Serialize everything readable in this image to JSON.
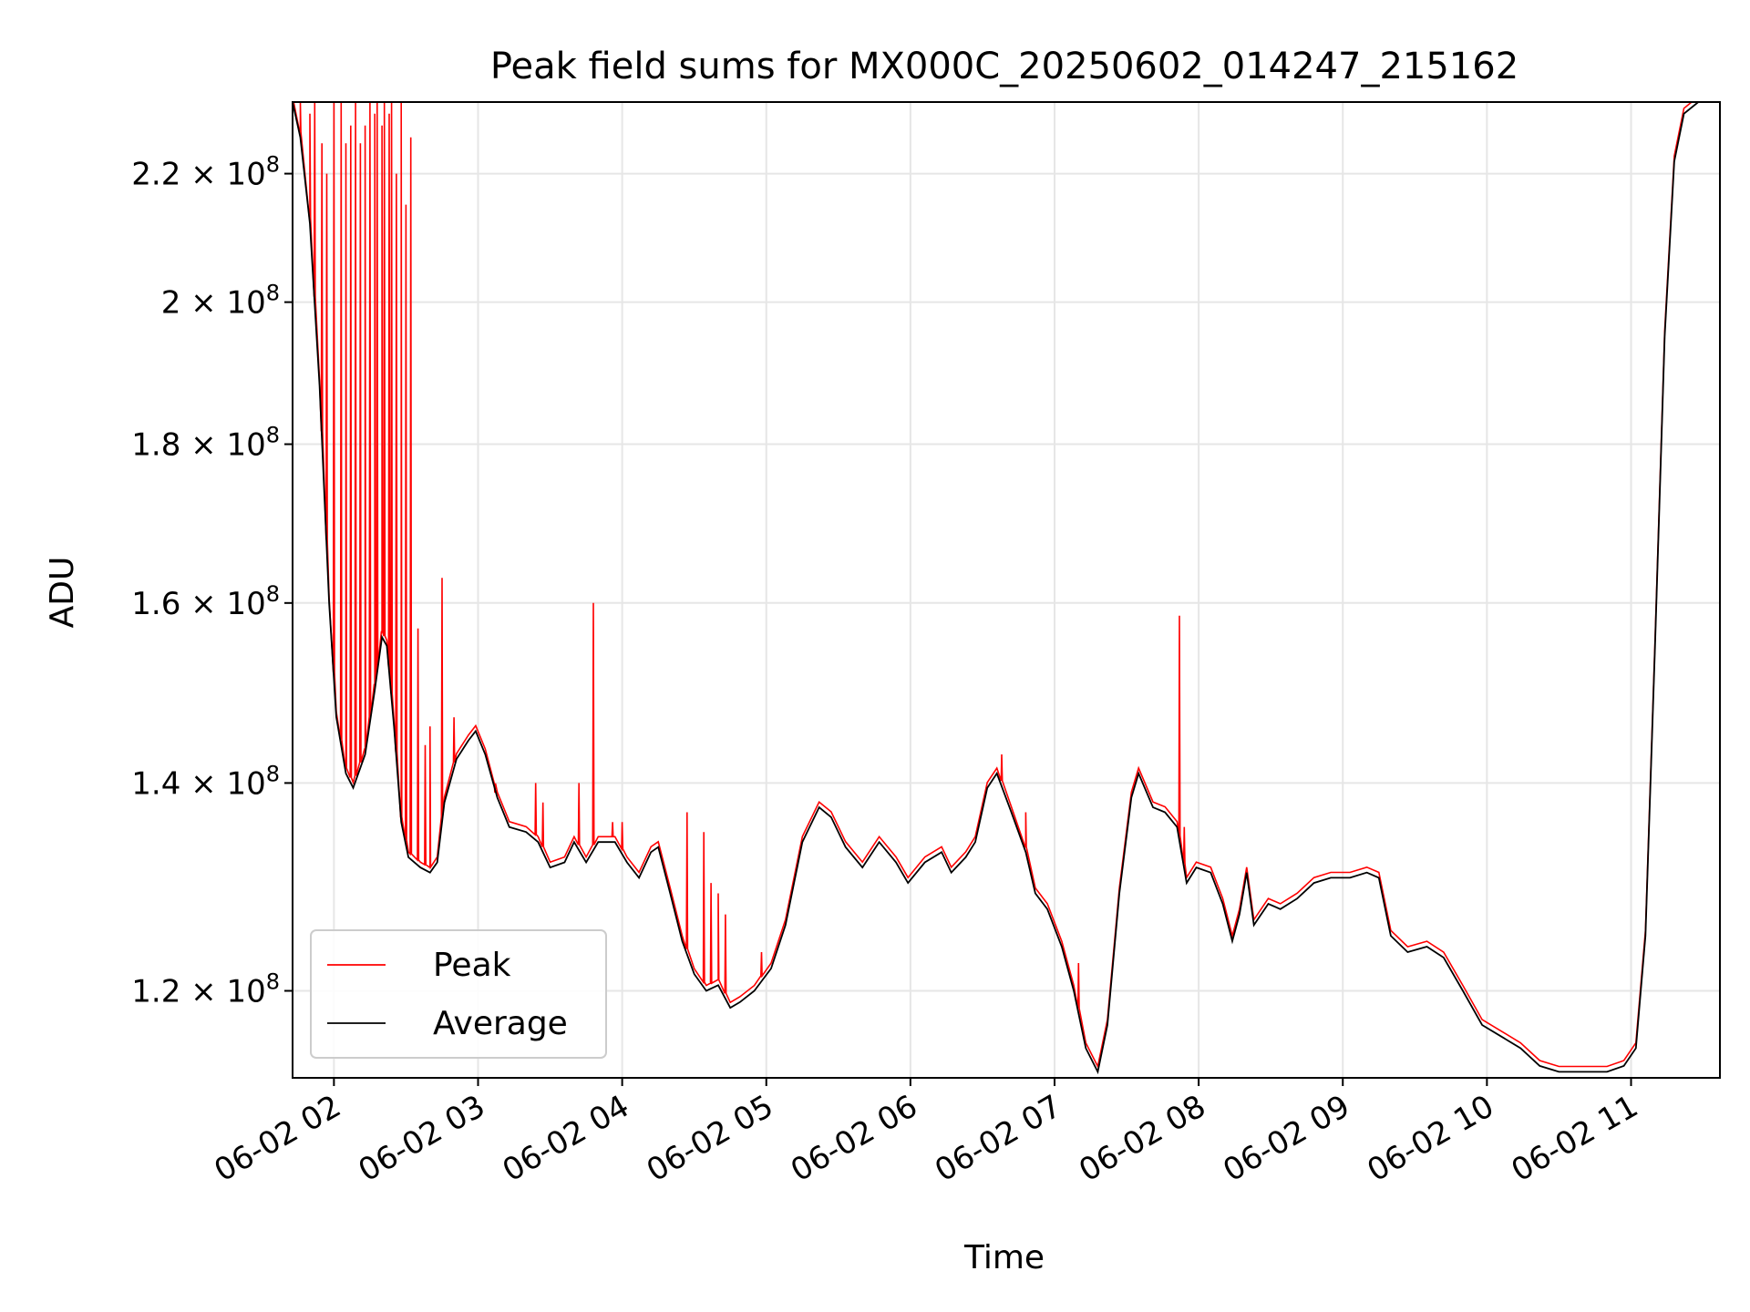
{
  "chart_data": {
    "type": "line",
    "title": "Peak field sums for MX000C_20250602_014247_215162",
    "xlabel": "Time",
    "ylabel": "ADU",
    "y_scale": "log",
    "x_start": "2025-06-02 01:42:47",
    "xlim": [
      "2025-06-02 01:42:47",
      "2025-06-02 11:37:00"
    ],
    "ylim": [
      112500000.0,
      232000000.0
    ],
    "x_ticks": [
      {
        "time": "2025-06-02 02:00",
        "label": "06-02 02"
      },
      {
        "time": "2025-06-02 03:00",
        "label": "06-02 03"
      },
      {
        "time": "2025-06-02 04:00",
        "label": "06-02 04"
      },
      {
        "time": "2025-06-02 05:00",
        "label": "06-02 05"
      },
      {
        "time": "2025-06-02 06:00",
        "label": "06-02 06"
      },
      {
        "time": "2025-06-02 07:00",
        "label": "06-02 07"
      },
      {
        "time": "2025-06-02 08:00",
        "label": "06-02 08"
      },
      {
        "time": "2025-06-02 09:00",
        "label": "06-02 09"
      },
      {
        "time": "2025-06-02 10:00",
        "label": "06-02 10"
      },
      {
        "time": "2025-06-02 11:00",
        "label": "06-02 11"
      }
    ],
    "y_ticks": [
      {
        "value": 120000000.0,
        "mantissa": "1.2",
        "exp": "8"
      },
      {
        "value": 140000000.0,
        "mantissa": "1.4",
        "exp": "8"
      },
      {
        "value": 160000000.0,
        "mantissa": "1.6",
        "exp": "8"
      },
      {
        "value": 180000000.0,
        "mantissa": "1.8",
        "exp": "8"
      },
      {
        "value": 200000000.0,
        "mantissa": "2",
        "exp": "8"
      },
      {
        "value": 220000000.0,
        "mantissa": "2.2",
        "exp": "8"
      }
    ],
    "grid": true,
    "legend_position": "lower-left",
    "series": [
      {
        "name": "Average",
        "color": "#000000",
        "points": [
          [
            "2025-06-02 01:42:47",
            232000000.0
          ],
          [
            "2025-06-02 01:46:00",
            226000000.0
          ],
          [
            "2025-06-02 01:50:00",
            212000000.0
          ],
          [
            "2025-06-02 01:54:00",
            188000000.0
          ],
          [
            "2025-06-02 01:58:00",
            160000000.0
          ],
          [
            "2025-06-02 02:01:00",
            147000000.0
          ],
          [
            "2025-06-02 02:05:00",
            141000000.0
          ],
          [
            "2025-06-02 02:08:00",
            139500000.0
          ],
          [
            "2025-06-02 02:13:00",
            143000000.0
          ],
          [
            "2025-06-02 02:17:00",
            150000000.0
          ],
          [
            "2025-06-02 02:20:00",
            156000000.0
          ],
          [
            "2025-06-02 02:22:00",
            155000000.0
          ],
          [
            "2025-06-02 02:25:00",
            146000000.0
          ],
          [
            "2025-06-02 02:28:00",
            136000000.0
          ],
          [
            "2025-06-02 02:31:00",
            132500000.0
          ],
          [
            "2025-06-02 02:36:00",
            131500000.0
          ],
          [
            "2025-06-02 02:40:00",
            131000000.0
          ],
          [
            "2025-06-02 02:43:00",
            132000000.0
          ],
          [
            "2025-06-02 02:46:00",
            138000000.0
          ],
          [
            "2025-06-02 02:51:00",
            142500000.0
          ],
          [
            "2025-06-02 02:56:00",
            144500000.0
          ],
          [
            "2025-06-02 02:59:00",
            145500000.0
          ],
          [
            "2025-06-02 03:03:00",
            143000000.0
          ],
          [
            "2025-06-02 03:08:00",
            138500000.0
          ],
          [
            "2025-06-02 03:13:00",
            135500000.0
          ],
          [
            "2025-06-02 03:20:00",
            135000000.0
          ],
          [
            "2025-06-02 03:25:00",
            134000000.0
          ],
          [
            "2025-06-02 03:30:00",
            131500000.0
          ],
          [
            "2025-06-02 03:36:00",
            132000000.0
          ],
          [
            "2025-06-02 03:40:00",
            134000000.0
          ],
          [
            "2025-06-02 03:45:00",
            132000000.0
          ],
          [
            "2025-06-02 03:50:00",
            134000000.0
          ],
          [
            "2025-06-02 03:57:00",
            134000000.0
          ],
          [
            "2025-06-02 04:02:00",
            132000000.0
          ],
          [
            "2025-06-02 04:07:00",
            130500000.0
          ],
          [
            "2025-06-02 04:12:00",
            133000000.0
          ],
          [
            "2025-06-02 04:15:00",
            133500000.0
          ],
          [
            "2025-06-02 04:20:00",
            129000000.0
          ],
          [
            "2025-06-02 04:25:00",
            124500000.0
          ],
          [
            "2025-06-02 04:30:00",
            121500000.0
          ],
          [
            "2025-06-02 04:35:00",
            120000000.0
          ],
          [
            "2025-06-02 04:40:00",
            120500000.0
          ],
          [
            "2025-06-02 04:45:00",
            118500000.0
          ],
          [
            "2025-06-02 04:49:00",
            119000000.0
          ],
          [
            "2025-06-02 04:55:00",
            120000000.0
          ],
          [
            "2025-06-02 05:02:00",
            122000000.0
          ],
          [
            "2025-06-02 05:08:00",
            126000000.0
          ],
          [
            "2025-06-02 05:15:00",
            134000000.0
          ],
          [
            "2025-06-02 05:22:00",
            137500000.0
          ],
          [
            "2025-06-02 05:27:00",
            136500000.0
          ],
          [
            "2025-06-02 05:33:00",
            133500000.0
          ],
          [
            "2025-06-02 05:40:00",
            131500000.0
          ],
          [
            "2025-06-02 05:47:00",
            134000000.0
          ],
          [
            "2025-06-02 05:54:00",
            132000000.0
          ],
          [
            "2025-06-02 05:59:00",
            130000000.0
          ],
          [
            "2025-06-02 06:06:00",
            132000000.0
          ],
          [
            "2025-06-02 06:13:00",
            133000000.0
          ],
          [
            "2025-06-02 06:17:00",
            131000000.0
          ],
          [
            "2025-06-02 06:23:00",
            132500000.0
          ],
          [
            "2025-06-02 06:27:00",
            134000000.0
          ],
          [
            "2025-06-02 06:32:00",
            139500000.0
          ],
          [
            "2025-06-02 06:36:00",
            141000000.0
          ],
          [
            "2025-06-02 06:42:00",
            137000000.0
          ],
          [
            "2025-06-02 06:48:00",
            133000000.0
          ],
          [
            "2025-06-02 06:52:00",
            129000000.0
          ],
          [
            "2025-06-02 06:57:00",
            127500000.0
          ],
          [
            "2025-06-02 07:03:00",
            124000000.0
          ],
          [
            "2025-06-02 07:08:00",
            120000000.0
          ],
          [
            "2025-06-02 07:13:00",
            115000000.0
          ],
          [
            "2025-06-02 07:18:00",
            113000000.0
          ],
          [
            "2025-06-02 07:22:00",
            117000000.0
          ],
          [
            "2025-06-02 07:27:00",
            129000000.0
          ],
          [
            "2025-06-02 07:32:00",
            138500000.0
          ],
          [
            "2025-06-02 07:35:00",
            141000000.0
          ],
          [
            "2025-06-02 07:41:00",
            137500000.0
          ],
          [
            "2025-06-02 07:46:00",
            137000000.0
          ],
          [
            "2025-06-02 07:51:00",
            135500000.0
          ],
          [
            "2025-06-02 07:55:00",
            130000000.0
          ],
          [
            "2025-06-02 07:59:00",
            131500000.0
          ],
          [
            "2025-06-02 08:05:00",
            131000000.0
          ],
          [
            "2025-06-02 08:10:00",
            128000000.0
          ],
          [
            "2025-06-02 08:14:00",
            124500000.0
          ],
          [
            "2025-06-02 08:17:00",
            127000000.0
          ],
          [
            "2025-06-02 08:20:00",
            131000000.0
          ],
          [
            "2025-06-02 08:23:00",
            126000000.0
          ],
          [
            "2025-06-02 08:29:00",
            128000000.0
          ],
          [
            "2025-06-02 08:34:00",
            127500000.0
          ],
          [
            "2025-06-02 08:41:00",
            128500000.0
          ],
          [
            "2025-06-02 08:48:00",
            130000000.0
          ],
          [
            "2025-06-02 08:55:00",
            130500000.0
          ],
          [
            "2025-06-02 09:03:00",
            130500000.0
          ],
          [
            "2025-06-02 09:10:00",
            131000000.0
          ],
          [
            "2025-06-02 09:15:00",
            130500000.0
          ],
          [
            "2025-06-02 09:20:00",
            125000000.0
          ],
          [
            "2025-06-02 09:27:00",
            123500000.0
          ],
          [
            "2025-06-02 09:35:00",
            124000000.0
          ],
          [
            "2025-06-02 09:42:00",
            123000000.0
          ],
          [
            "2025-06-02 09:50:00",
            120000000.0
          ],
          [
            "2025-06-02 09:58:00",
            117000000.0
          ],
          [
            "2025-06-02 10:06:00",
            116000000.0
          ],
          [
            "2025-06-02 10:14:00",
            115000000.0
          ],
          [
            "2025-06-02 10:22:00",
            113500000.0
          ],
          [
            "2025-06-02 10:30:00",
            113000000.0
          ],
          [
            "2025-06-02 10:40:00",
            113000000.0
          ],
          [
            "2025-06-02 10:50:00",
            113000000.0
          ],
          [
            "2025-06-02 10:57:00",
            113500000.0
          ],
          [
            "2025-06-02 11:02:00",
            115000000.0
          ],
          [
            "2025-06-02 11:06:00",
            125000000.0
          ],
          [
            "2025-06-02 11:10:00",
            155000000.0
          ],
          [
            "2025-06-02 11:14:00",
            195000000.0
          ],
          [
            "2025-06-02 11:18:00",
            222000000.0
          ],
          [
            "2025-06-02 11:22:00",
            230000000.0
          ],
          [
            "2025-06-02 11:28:00",
            232000000.0
          ],
          [
            "2025-06-02 11:37:00",
            232000000.0
          ]
        ]
      },
      {
        "name": "Peak",
        "color": "#ff0000",
        "spikes": [
          [
            "2025-06-02 01:46:00",
            232000000.0
          ],
          [
            "2025-06-02 01:50:00",
            230000000.0
          ],
          [
            "2025-06-02 01:52:00",
            232000000.0
          ],
          [
            "2025-06-02 01:55:00",
            225000000.0
          ],
          [
            "2025-06-02 01:57:00",
            220000000.0
          ],
          [
            "2025-06-02 02:00:00",
            232000000.0
          ],
          [
            "2025-06-02 02:03:00",
            232000000.0
          ],
          [
            "2025-06-02 02:05:00",
            225000000.0
          ],
          [
            "2025-06-02 02:07:00",
            228000000.0
          ],
          [
            "2025-06-02 02:09:00",
            232000000.0
          ],
          [
            "2025-06-02 02:11:00",
            225000000.0
          ],
          [
            "2025-06-02 02:13:00",
            228000000.0
          ],
          [
            "2025-06-02 02:15:00",
            232000000.0
          ],
          [
            "2025-06-02 02:17:00",
            230000000.0
          ],
          [
            "2025-06-02 02:18:00",
            232000000.0
          ],
          [
            "2025-06-02 02:20:00",
            228000000.0
          ],
          [
            "2025-06-02 02:21:00",
            232000000.0
          ],
          [
            "2025-06-02 02:23:00",
            230000000.0
          ],
          [
            "2025-06-02 02:24:00",
            232000000.0
          ],
          [
            "2025-06-02 02:26:00",
            220000000.0
          ],
          [
            "2025-06-02 02:28:00",
            232000000.0
          ],
          [
            "2025-06-02 02:30:00",
            215000000.0
          ],
          [
            "2025-06-02 02:32:00",
            226000000.0
          ],
          [
            "2025-06-02 02:35:00",
            157000000.0
          ],
          [
            "2025-06-02 02:38:00",
            144000000.0
          ],
          [
            "2025-06-02 02:40:00",
            146000000.0
          ],
          [
            "2025-06-02 02:45:00",
            163000000.0
          ],
          [
            "2025-06-02 02:50:00",
            147000000.0
          ],
          [
            "2025-06-02 03:07:00",
            139000000.0
          ],
          [
            "2025-06-02 03:24:00",
            140000000.0
          ],
          [
            "2025-06-02 03:27:00",
            138000000.0
          ],
          [
            "2025-06-02 03:42:00",
            140000000.0
          ],
          [
            "2025-06-02 03:48:00",
            160000000.0
          ],
          [
            "2025-06-02 03:56:00",
            136000000.0
          ],
          [
            "2025-06-02 04:00:00",
            136000000.0
          ],
          [
            "2025-06-02 04:27:00",
            137000000.0
          ],
          [
            "2025-06-02 04:34:00",
            135000000.0
          ],
          [
            "2025-06-02 04:37:00",
            130000000.0
          ],
          [
            "2025-06-02 04:40:00",
            129000000.0
          ],
          [
            "2025-06-02 04:43:00",
            127000000.0
          ],
          [
            "2025-06-02 04:58:00",
            123500000.0
          ],
          [
            "2025-06-02 06:38:00",
            143000000.0
          ],
          [
            "2025-06-02 06:48:00",
            137000000.0
          ],
          [
            "2025-06-02 07:10:00",
            122500000.0
          ],
          [
            "2025-06-02 07:52:00",
            158500000.0
          ],
          [
            "2025-06-02 07:54:00",
            135500000.0
          ]
        ]
      }
    ],
    "legend": [
      {
        "label": "Peak",
        "color": "#ff0000"
      },
      {
        "label": "Average",
        "color": "#000000"
      }
    ]
  }
}
